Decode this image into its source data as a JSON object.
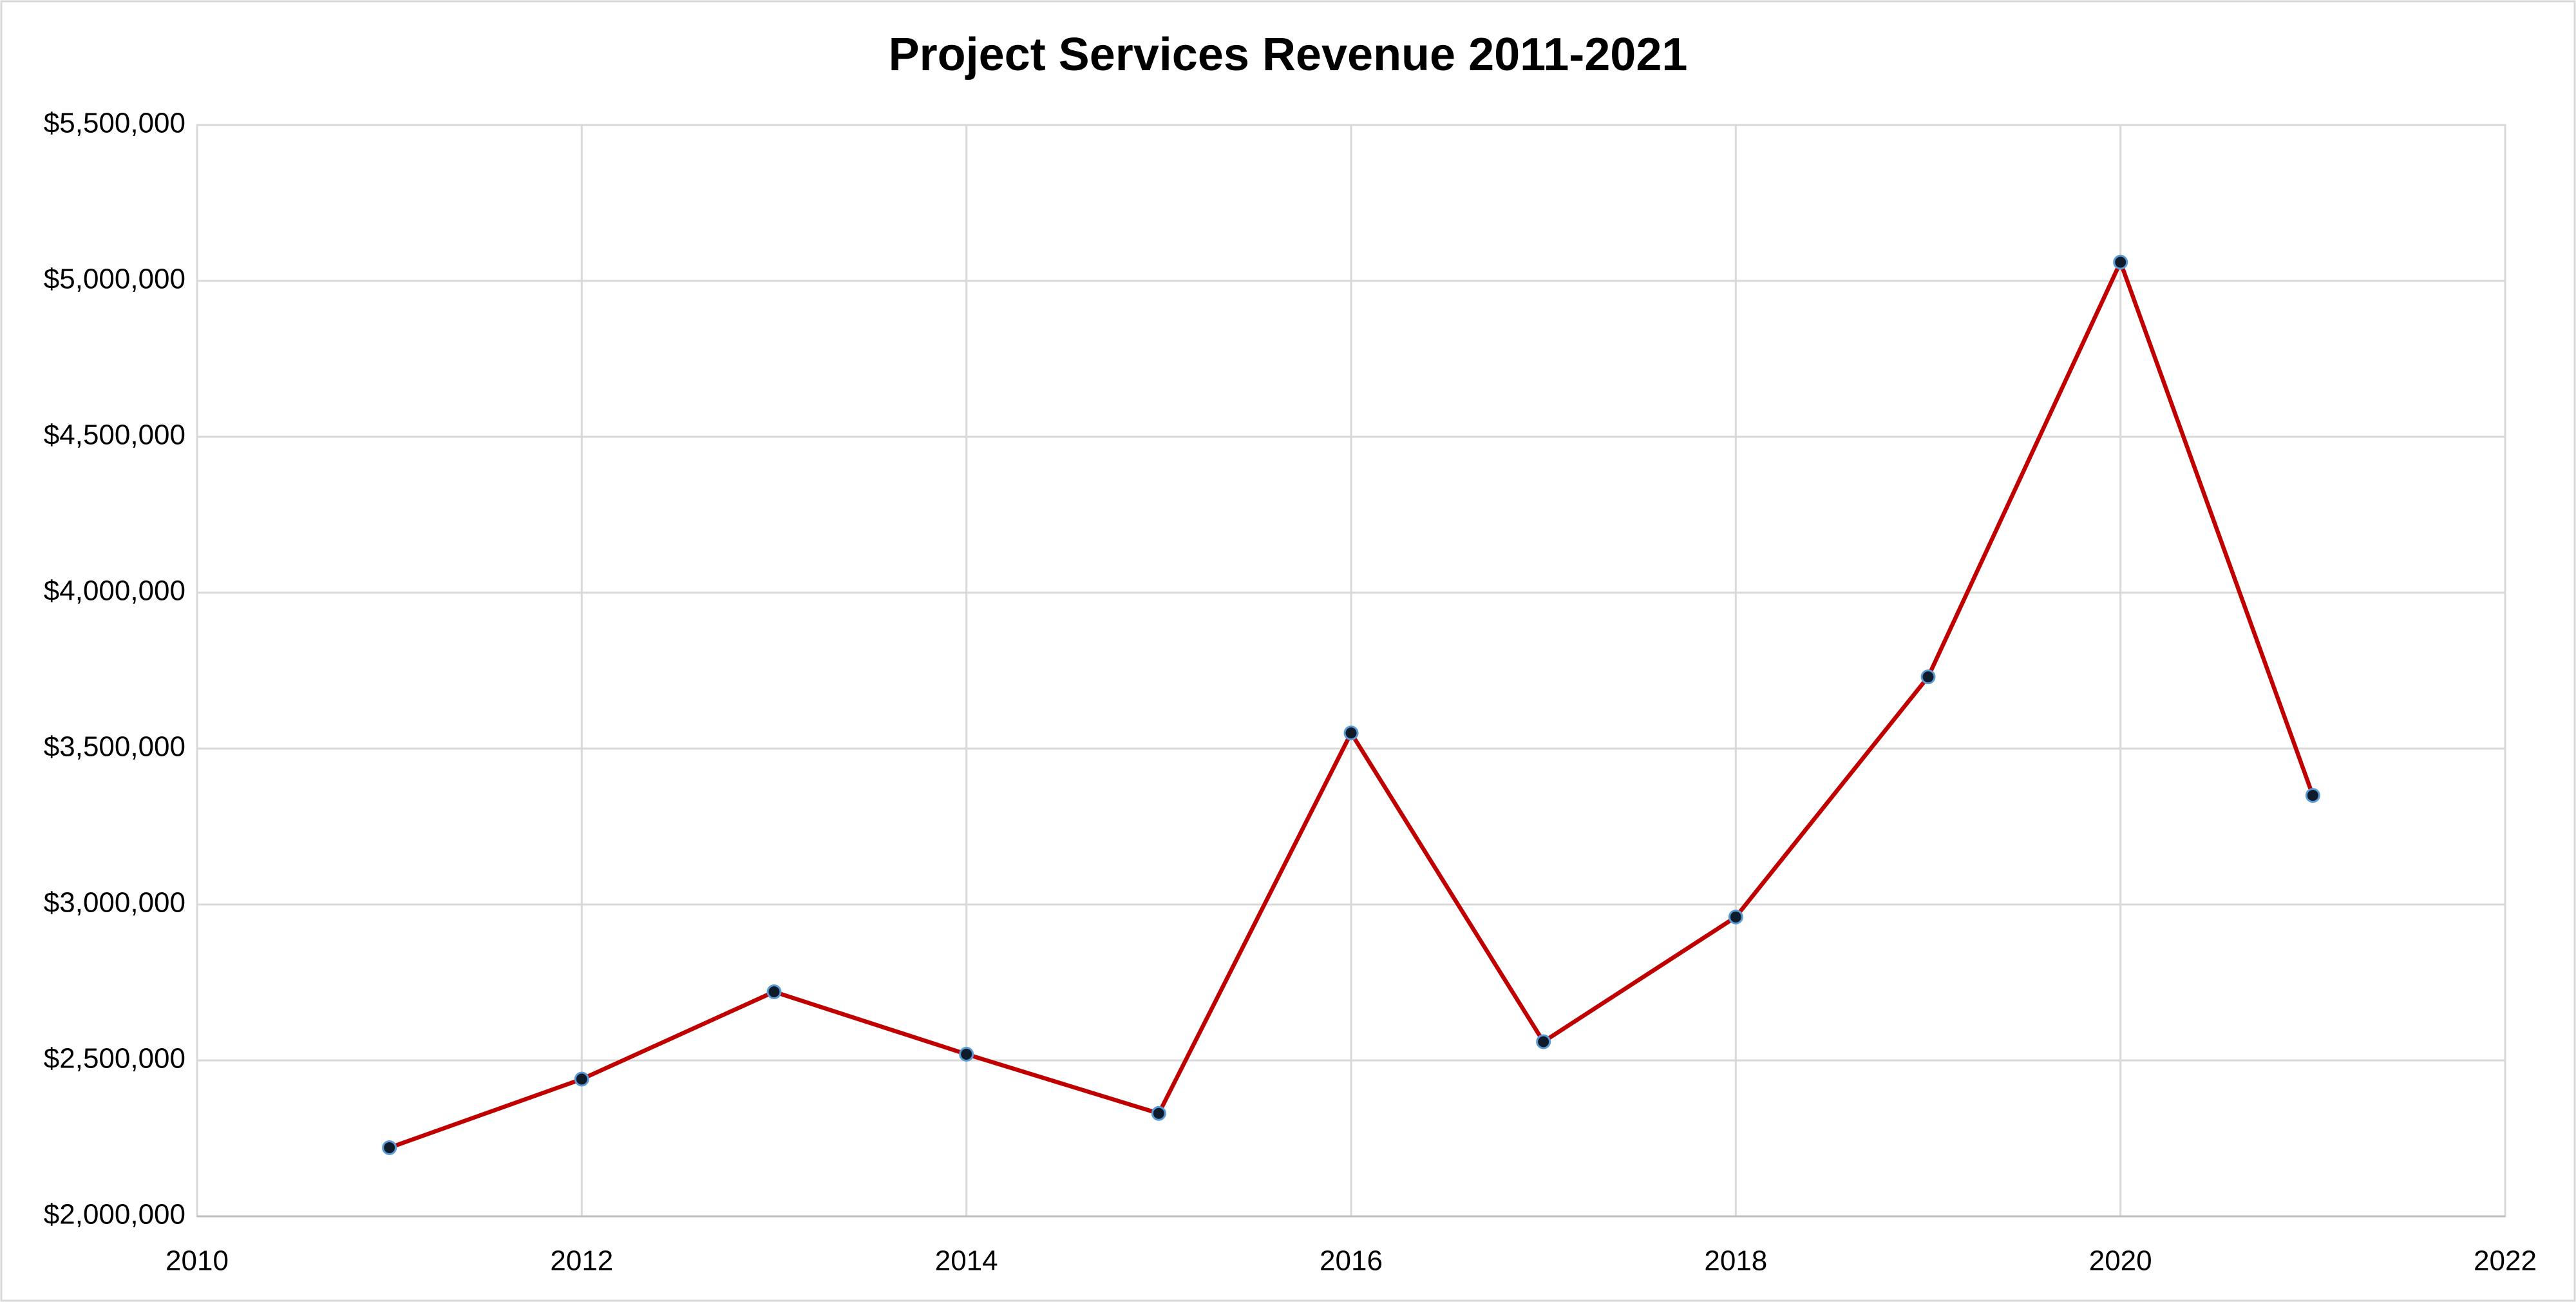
{
  "chart_data": {
    "type": "line",
    "title": "Project Services Revenue 2011-2021",
    "x": [
      2011,
      2012,
      2013,
      2014,
      2015,
      2016,
      2017,
      2018,
      2019,
      2020,
      2021
    ],
    "values": [
      2220000,
      2440000,
      2720000,
      2520000,
      2330000,
      3550000,
      2560000,
      2960000,
      3730000,
      5060000,
      3350000
    ],
    "color": "#c00000",
    "marker_color": "#0d1b2a",
    "marker_edge_color": "#5b9bd5",
    "xlim": [
      2010,
      2022
    ],
    "xticks": [
      2010,
      2012,
      2014,
      2016,
      2018,
      2020,
      2022
    ],
    "ylim": [
      2000000,
      5500000
    ],
    "yticks": [
      {
        "value": 2000000,
        "label": "$2,000,000"
      },
      {
        "value": 2500000,
        "label": "$2,500,000"
      },
      {
        "value": 3000000,
        "label": "$3,000,000"
      },
      {
        "value": 3500000,
        "label": "$3,500,000"
      },
      {
        "value": 4000000,
        "label": "$4,000,000"
      },
      {
        "value": 4500000,
        "label": "$4,500,000"
      },
      {
        "value": 5000000,
        "label": "$5,000,000"
      },
      {
        "value": 5500000,
        "label": "$5,500,000"
      }
    ],
    "grid": true
  }
}
